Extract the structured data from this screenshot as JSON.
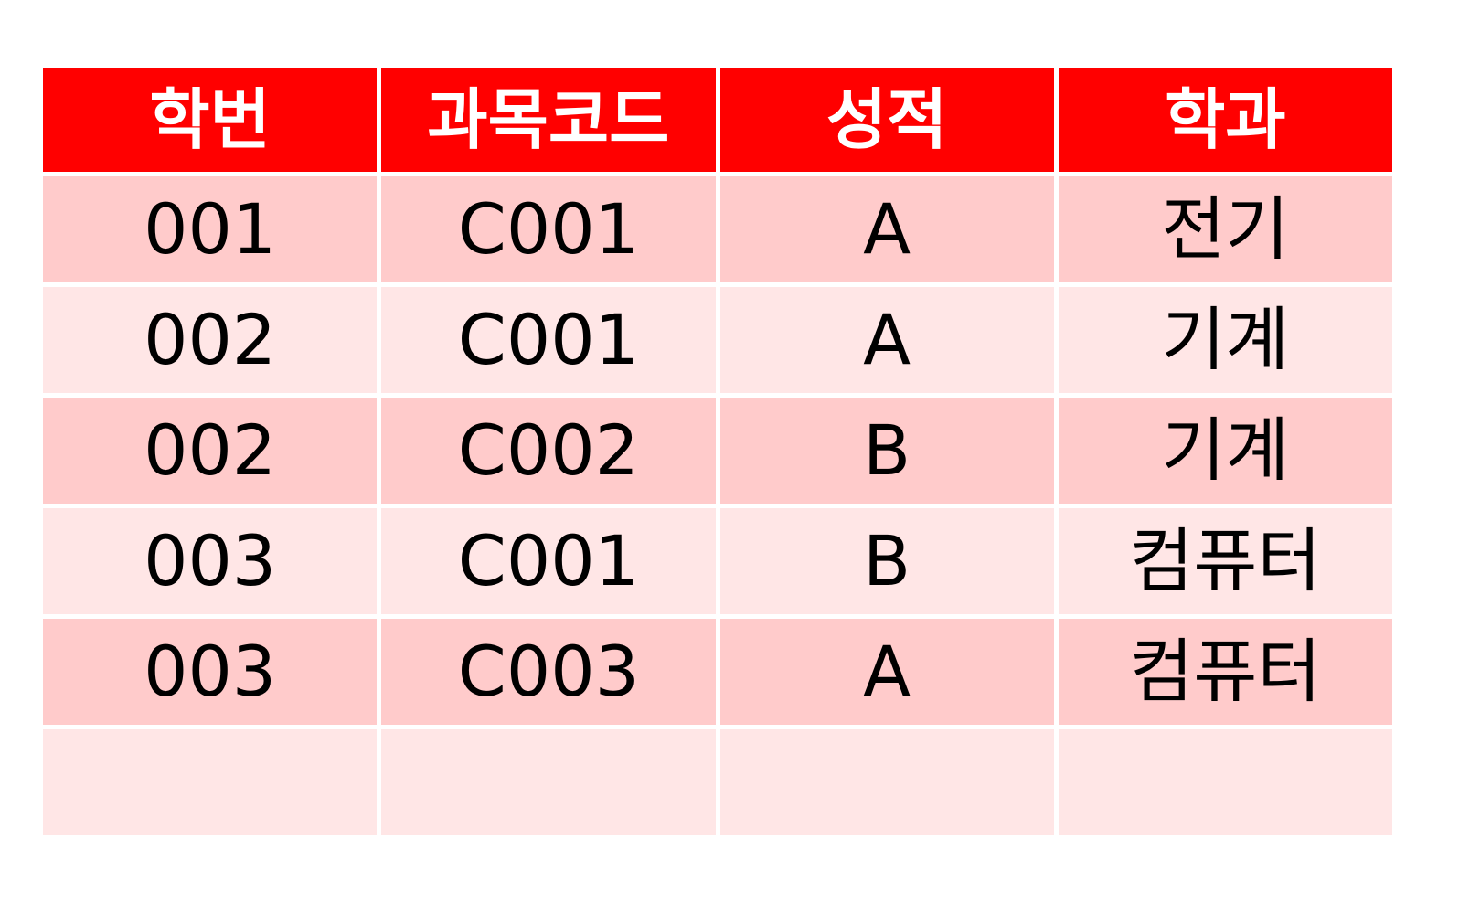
{
  "table": {
    "headers": [
      "학번",
      "과목코드",
      "성적",
      "학과"
    ],
    "rows": [
      [
        "001",
        "C001",
        "A",
        "전기"
      ],
      [
        "002",
        "C001",
        "A",
        "기계"
      ],
      [
        "002",
        "C002",
        "B",
        "기계"
      ],
      [
        "003",
        "C001",
        "B",
        "컴퓨터"
      ],
      [
        "003",
        "C003",
        "A",
        "컴퓨터"
      ],
      [
        "",
        "",
        "",
        ""
      ]
    ]
  },
  "colors": {
    "header_bg": "#ff0000",
    "header_text": "#ffffff",
    "row_dark": "#ffcbcb",
    "row_light": "#ffe6e6"
  }
}
